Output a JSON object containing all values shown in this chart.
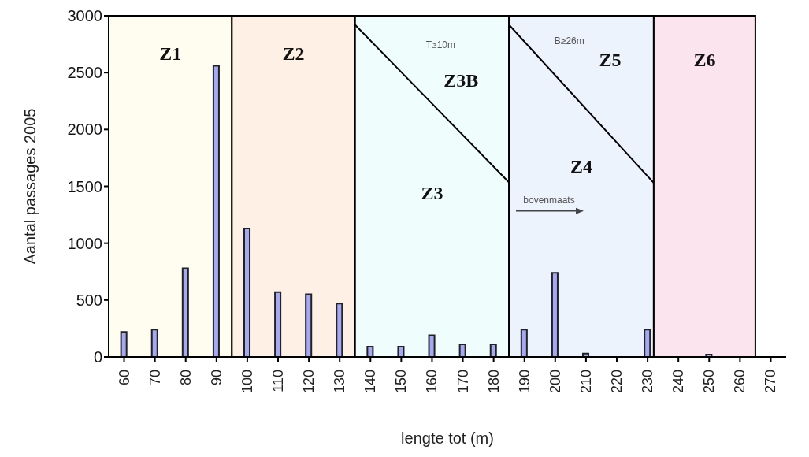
{
  "chart_data": {
    "type": "bar",
    "xlabel": "lengte tot (m)",
    "ylabel": "Aantal passages 2005",
    "x": [
      60,
      70,
      80,
      90,
      100,
      110,
      120,
      130,
      140,
      150,
      160,
      170,
      180,
      190,
      200,
      210,
      220,
      230,
      240,
      250,
      260
    ],
    "xlim": [
      55,
      275
    ],
    "xticks": [
      60,
      70,
      80,
      90,
      100,
      110,
      120,
      130,
      140,
      150,
      160,
      170,
      180,
      190,
      200,
      210,
      220,
      230,
      240,
      250,
      260,
      270
    ],
    "ylim": [
      0,
      3000
    ],
    "yticks": [
      0,
      500,
      1000,
      1500,
      2000,
      2500,
      3000
    ],
    "series": [
      {
        "color": "#a5a8f5",
        "values": [
          220,
          240,
          780,
          2560,
          1130,
          570,
          550,
          470,
          90,
          90,
          190,
          110,
          110,
          240,
          740,
          30,
          0,
          240,
          0,
          20,
          0
        ]
      },
      {
        "type": "line",
        "color": "#000000",
        "x": [
          135,
          185
        ],
        "values": [
          2920,
          1535
        ]
      },
      {
        "type": "line",
        "color": "#000000",
        "x": [
          185,
          232
        ],
        "values": [
          2920,
          1530
        ]
      }
    ],
    "line_style": "solid",
    "marker": "none",
    "grid": false,
    "legend": false,
    "bands": [
      {
        "axis": "x",
        "from": 55,
        "to": 95,
        "color": "#fffdf0",
        "label": "Z1"
      },
      {
        "axis": "x",
        "from": 95,
        "to": 135,
        "color": "#fef0e4",
        "label": "Z2"
      },
      {
        "axis": "x",
        "from": 135,
        "to": 185,
        "color": "#f0fdfd",
        "label": "Z3"
      },
      {
        "axis": "x",
        "from": 185,
        "to": 232,
        "color": "#ecf3fd",
        "label": "Z4"
      },
      {
        "axis": "x",
        "from": 232,
        "to": 265,
        "color": "#fce4ef",
        "label": "Z6"
      }
    ],
    "annotations": [
      "T≥10m",
      "Z3B",
      "B≥26m",
      "Z5",
      "bovenmaats"
    ]
  }
}
